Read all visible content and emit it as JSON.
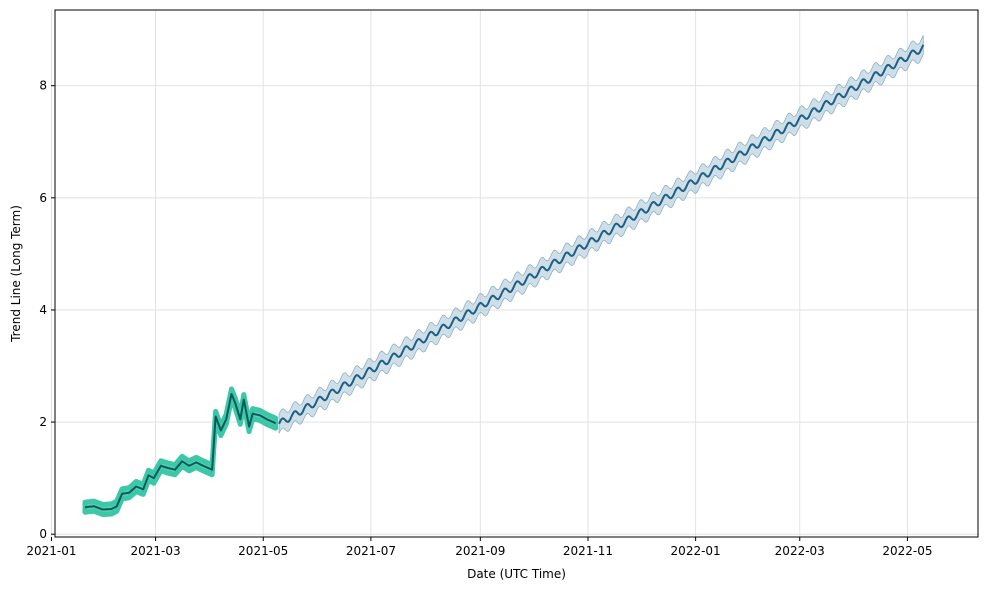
{
  "chart_data": {
    "type": "line",
    "title": "",
    "xlabel": "Date (UTC Time)",
    "ylabel": "Trend Line (Long Term)",
    "xlim": [
      "2021-01-03",
      "2022-06-10"
    ],
    "ylim": [
      -0.05,
      9.35
    ],
    "grid": true,
    "x_ticks": [
      "2021-01",
      "2021-03",
      "2021-05",
      "2021-07",
      "2021-09",
      "2021-11",
      "2022-01",
      "2022-03",
      "2022-05"
    ],
    "y_ticks": [
      0,
      2,
      4,
      6,
      8
    ],
    "colors": {
      "historical_line": "#0b5a5a",
      "historical_band": "#3cc7a6",
      "forecast_line": "#1f5f85",
      "forecast_band": "#a8c4d6",
      "grid": "#e2e2e2"
    },
    "series": [
      {
        "kind": "historical",
        "band_halfwidth": 0.09,
        "x": [
          "2021-01-20",
          "2021-01-25",
          "2021-01-30",
          "2021-02-04",
          "2021-02-07",
          "2021-02-10",
          "2021-02-14",
          "2021-02-18",
          "2021-02-22",
          "2021-02-25",
          "2021-02-28",
          "2021-03-04",
          "2021-03-08",
          "2021-03-12",
          "2021-03-16",
          "2021-03-20",
          "2021-03-24",
          "2021-03-28",
          "2021-04-02",
          "2021-04-04",
          "2021-04-07",
          "2021-04-10",
          "2021-04-13",
          "2021-04-15",
          "2021-04-18",
          "2021-04-20",
          "2021-04-23",
          "2021-04-25",
          "2021-04-29",
          "2021-05-03",
          "2021-05-08"
        ],
        "y": [
          0.48,
          0.5,
          0.44,
          0.45,
          0.5,
          0.72,
          0.74,
          0.85,
          0.8,
          1.05,
          1.0,
          1.22,
          1.18,
          1.15,
          1.3,
          1.22,
          1.28,
          1.22,
          1.15,
          2.1,
          1.85,
          2.05,
          2.5,
          2.35,
          2.05,
          2.4,
          1.92,
          2.15,
          2.12,
          2.05,
          1.98
        ]
      },
      {
        "kind": "forecast",
        "band_halfwidth": 0.17,
        "weekly_amplitude": 0.06,
        "x": [
          "2021-05-10",
          "2022-05-10"
        ],
        "y": [
          1.97,
          8.68
        ]
      }
    ]
  }
}
